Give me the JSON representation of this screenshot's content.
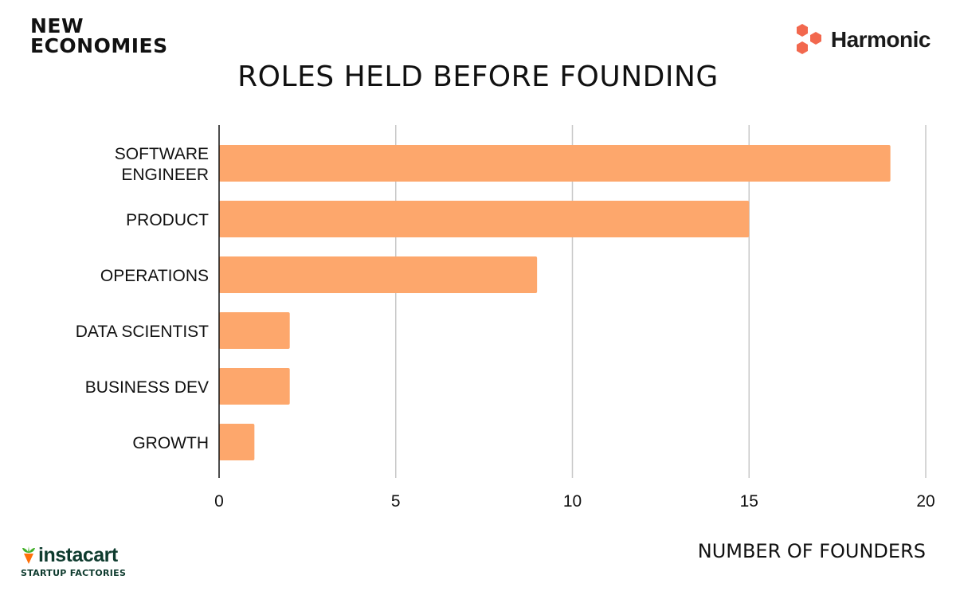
{
  "brands": {
    "top_left_line1": "NEW",
    "top_left_line2": "ECONOMIES",
    "top_right": "Harmonic",
    "bottom_left_name": "instacart",
    "bottom_left_sub": "STARTUP FACTORIES"
  },
  "colors": {
    "bar": "#fda76c",
    "grid": "#c8c8c8",
    "axis": "#111111",
    "harmonic_logo": "#f2684e",
    "instacart_green": "#0e3b2e",
    "instacart_carrot": "#ff7009",
    "instacart_leaf": "#43b02a"
  },
  "icons": {
    "top_right_logo": "harmonic-hexagons-icon",
    "bottom_left_logo": "carrot-icon"
  },
  "chart_data": {
    "type": "bar",
    "orientation": "horizontal",
    "title": "ROLES HELD BEFORE FOUNDING",
    "xlabel": "NUMBER OF FOUNDERS",
    "ylabel": "",
    "categories": [
      [
        "SOFTWARE",
        "ENGINEER"
      ],
      [
        "PRODUCT"
      ],
      [
        "OPERATIONS"
      ],
      [
        "DATA SCIENTIST"
      ],
      [
        "BUSINESS DEV"
      ],
      [
        "GROWTH"
      ]
    ],
    "values": [
      19,
      15,
      9,
      2,
      2,
      1
    ],
    "xlim": [
      0,
      20
    ],
    "xticks": [
      0,
      5,
      10,
      15,
      20
    ],
    "grid": "vertical"
  }
}
